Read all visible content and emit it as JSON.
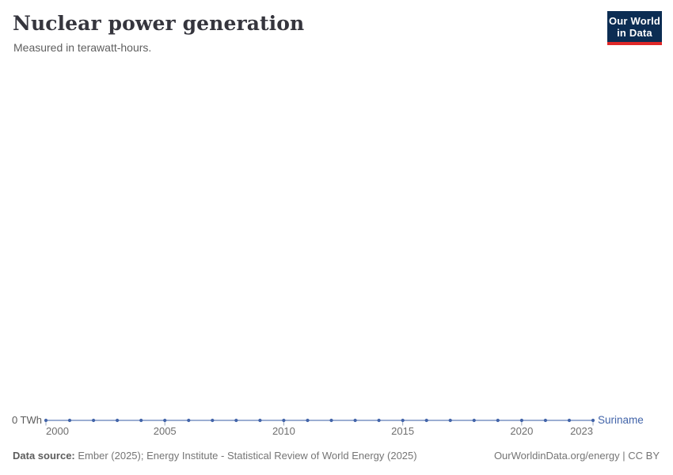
{
  "header": {
    "title": "Nuclear power generation",
    "subtitle": "Measured in terawatt-hours.",
    "logo": {
      "line1": "Our World",
      "line2": "in Data"
    }
  },
  "chart_data": {
    "type": "line",
    "title": "Nuclear power generation",
    "subtitle": "Measured in terawatt-hours.",
    "unit": "TWh",
    "xlim": [
      2000,
      2023
    ],
    "ylim": [
      0,
      0
    ],
    "grid": false,
    "legend_position": "end-of-line",
    "y_axis_label": "0 TWh",
    "x_ticks": [
      2000,
      2005,
      2010,
      2015,
      2020,
      2023
    ],
    "x_tick_labels": [
      "2000",
      "2005",
      "2010",
      "2015",
      "2020",
      "2023"
    ],
    "series": [
      {
        "name": "Suriname",
        "color": "#4264a9",
        "line_color": "#7b93c4",
        "x": [
          2000,
          2001,
          2002,
          2003,
          2004,
          2005,
          2006,
          2007,
          2008,
          2009,
          2010,
          2011,
          2012,
          2013,
          2014,
          2015,
          2016,
          2017,
          2018,
          2019,
          2020,
          2021,
          2022,
          2023
        ],
        "values": [
          0,
          0,
          0,
          0,
          0,
          0,
          0,
          0,
          0,
          0,
          0,
          0,
          0,
          0,
          0,
          0,
          0,
          0,
          0,
          0,
          0,
          0,
          0,
          0
        ]
      }
    ]
  },
  "footer": {
    "data_source_label": "Data source:",
    "data_source_value": "Ember (2025); Energy Institute - Statistical Review of World Energy (2025)",
    "link": "OurWorldinData.org/energy | CC BY"
  },
  "colors": {
    "accent_blue": "#4264a9",
    "logo_navy": "#0c2d53",
    "logo_red": "#e02828",
    "title_text": "#35353d",
    "muted_text": "#6e6e6e",
    "tick": "#9aa7bd"
  }
}
